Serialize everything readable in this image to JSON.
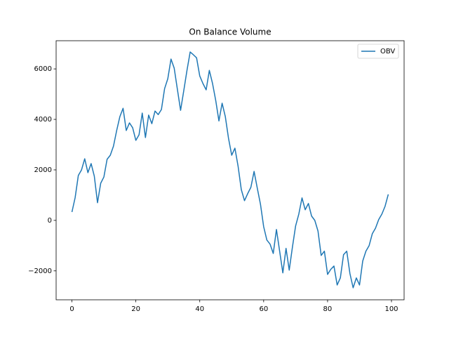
{
  "chart_data": {
    "type": "line",
    "title": "On Balance Volume",
    "x": [
      0,
      1,
      2,
      3,
      4,
      5,
      6,
      7,
      8,
      9,
      10,
      11,
      12,
      13,
      14,
      15,
      16,
      17,
      18,
      19,
      20,
      21,
      22,
      23,
      24,
      25,
      26,
      27,
      28,
      29,
      30,
      31,
      32,
      33,
      34,
      35,
      36,
      37,
      38,
      39,
      40,
      41,
      42,
      43,
      44,
      45,
      46,
      47,
      48,
      49,
      50,
      51,
      52,
      53,
      54,
      55,
      56,
      57,
      58,
      59,
      60,
      61,
      62,
      63,
      64,
      65,
      66,
      67,
      68,
      69,
      70,
      71,
      72,
      73,
      74,
      75,
      76,
      77,
      78,
      79,
      80,
      81,
      82,
      83,
      84,
      85,
      86,
      87,
      88,
      89,
      90,
      91,
      92,
      93,
      94,
      95,
      96,
      97,
      98,
      99
    ],
    "series": [
      {
        "name": "OBV",
        "color": "#1f77b4",
        "values": [
          330,
          900,
          1780,
          2000,
          2440,
          1890,
          2250,
          1750,
          700,
          1470,
          1720,
          2420,
          2580,
          2940,
          3560,
          4110,
          4440,
          3560,
          3860,
          3670,
          3170,
          3390,
          4250,
          3280,
          4170,
          3830,
          4330,
          4190,
          4390,
          5220,
          5610,
          6390,
          6030,
          5190,
          4360,
          5140,
          5940,
          6670,
          6560,
          6440,
          5720,
          5420,
          5170,
          5940,
          5420,
          4750,
          3940,
          4640,
          4110,
          3250,
          2580,
          2860,
          2140,
          1220,
          780,
          1060,
          1310,
          1940,
          1280,
          640,
          -250,
          -780,
          -940,
          -1310,
          -360,
          -1220,
          -2080,
          -1110,
          -1970,
          -1060,
          -220,
          250,
          890,
          420,
          670,
          170,
          0,
          -420,
          -1390,
          -1220,
          -2140,
          -1940,
          -1810,
          -2560,
          -2280,
          -1360,
          -1220,
          -2110,
          -2670,
          -2280,
          -2560,
          -1610,
          -1220,
          -1000,
          -530,
          -310,
          30,
          250,
          560,
          1030
        ]
      }
    ],
    "xlim": [
      -4.95,
      103.95
    ],
    "xticks": [
      0,
      20,
      40,
      60,
      80,
      100
    ],
    "ylim": [
      -3146,
      7116
    ],
    "yticks": [
      {
        "value": -2000,
        "label": "−2000"
      },
      0,
      2000,
      4000,
      6000
    ],
    "legend": "upper right"
  }
}
